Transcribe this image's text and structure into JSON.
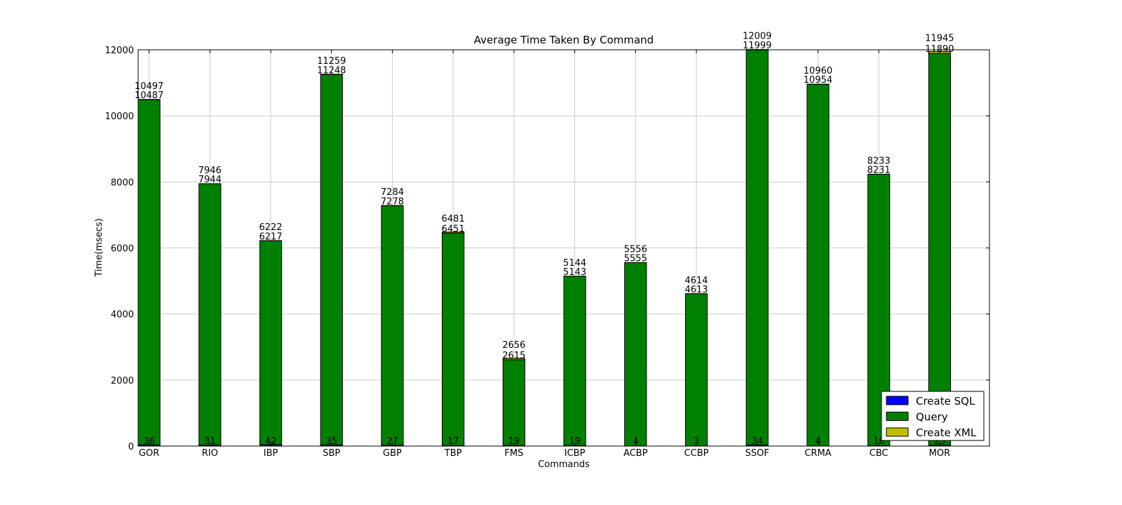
{
  "chart_data": {
    "type": "bar",
    "stacked": true,
    "title": "Average Time Taken By Command",
    "xlabel": "Commands",
    "ylabel": "Time(msecs)",
    "ylim": [
      0,
      12000
    ],
    "yticks": [
      0,
      2000,
      4000,
      6000,
      8000,
      10000,
      12000
    ],
    "grid": true,
    "legend_position": "bottom-right",
    "categories": [
      "GOR",
      "RIO",
      "IBP",
      "SBP",
      "GBP",
      "TBP",
      "FMS",
      "ICBP",
      "ACBP",
      "CCBP",
      "SSOF",
      "CRMA",
      "CBC",
      "MOR"
    ],
    "series": [
      {
        "name": "Create SQL",
        "color": "#0000ff",
        "values": [
          36,
          31,
          42,
          35,
          27,
          17,
          19,
          19,
          4,
          3,
          34,
          4,
          16,
          23
        ]
      },
      {
        "name": "Query",
        "color": "#008000",
        "values": [
          10451,
          7913,
          6175,
          11213,
          7251,
          6434,
          2596,
          5124,
          5551,
          4610,
          11965,
          10950,
          8215,
          11867
        ]
      },
      {
        "name": "Create XML",
        "color": "#bfbf00",
        "values": [
          10,
          2,
          5,
          11,
          6,
          30,
          41,
          1,
          1,
          1,
          10,
          6,
          2,
          55
        ]
      }
    ],
    "bottom_labels": [
      "36",
      "31",
      "42",
      "35",
      "27",
      "17",
      "19",
      "19",
      "4",
      "3",
      "34",
      "4",
      "16",
      "23"
    ],
    "middle_labels": [
      "10487",
      "7944",
      "6217",
      "11248",
      "7278",
      "6451",
      "2615",
      "5143",
      "5555",
      "4613",
      "11999",
      "10954",
      "8231",
      "11890"
    ],
    "top_labels": [
      "10497",
      "7946",
      "6222",
      "11259",
      "7284",
      "6481",
      "2656",
      "5144",
      "5556",
      "4614",
      "12009",
      "10960",
      "8233",
      "11945"
    ]
  }
}
